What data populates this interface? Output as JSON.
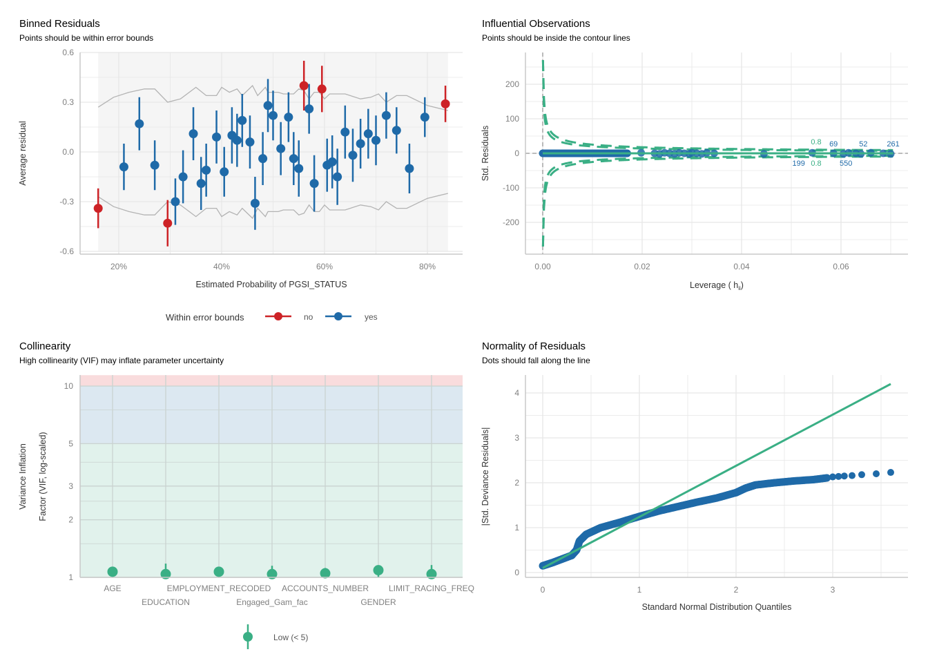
{
  "colors": {
    "blue": "#1f6aa8",
    "red": "#cd2226",
    "green": "#3aaf85",
    "grid": "#e6e6e6",
    "bound": "#b3b3b3"
  },
  "chart_data": [
    {
      "type": "scatter",
      "title": "Binned Residuals",
      "subtitle": "Points should be within error bounds",
      "xlabel": "Estimated Probability of PGSI_STATUS",
      "ylabel": "Average residual",
      "xticks": [
        20,
        40,
        60,
        80
      ],
      "xtick_labels": [
        "20%",
        "40%",
        "60%",
        "80%"
      ],
      "yticks": [
        0.6,
        0.3,
        0.0,
        -0.3,
        -0.6
      ],
      "ytick_labels": [
        "0.6",
        "0.3",
        "0.0",
        "-0.3",
        "-0.6"
      ],
      "xlim": [
        13,
        90
      ],
      "ylim": [
        -0.62,
        0.62
      ],
      "legend": {
        "title": "Within error bounds",
        "entries": [
          "no",
          "yes"
        ],
        "position": "bottom"
      },
      "shaded_x_range": [
        16,
        84
      ],
      "points": [
        [
          16,
          -0.34,
          0.12,
          "no"
        ],
        [
          21,
          -0.09,
          0.14,
          "yes"
        ],
        [
          24,
          0.17,
          0.16,
          "yes"
        ],
        [
          27,
          -0.08,
          0.15,
          "yes"
        ],
        [
          29.5,
          -0.43,
          0.14,
          "no"
        ],
        [
          31,
          -0.3,
          0.14,
          "yes"
        ],
        [
          32.5,
          -0.15,
          0.16,
          "yes"
        ],
        [
          34.5,
          0.11,
          0.16,
          "yes"
        ],
        [
          36,
          -0.19,
          0.16,
          "yes"
        ],
        [
          37,
          -0.11,
          0.16,
          "yes"
        ],
        [
          39,
          0.09,
          0.16,
          "yes"
        ],
        [
          40.5,
          -0.12,
          0.15,
          "yes"
        ],
        [
          42,
          0.1,
          0.17,
          "yes"
        ],
        [
          43,
          0.07,
          0.16,
          "yes"
        ],
        [
          44,
          0.19,
          0.16,
          "yes"
        ],
        [
          45.5,
          0.06,
          0.16,
          "yes"
        ],
        [
          46.5,
          -0.31,
          0.16,
          "yes"
        ],
        [
          48,
          -0.04,
          0.16,
          "yes"
        ],
        [
          49,
          0.28,
          0.16,
          "yes"
        ],
        [
          50,
          0.22,
          0.15,
          "yes"
        ],
        [
          51.5,
          0.02,
          0.16,
          "yes"
        ],
        [
          53,
          0.21,
          0.15,
          "yes"
        ],
        [
          54,
          -0.04,
          0.16,
          "yes"
        ],
        [
          55,
          -0.1,
          0.17,
          "yes"
        ],
        [
          56,
          0.4,
          0.15,
          "no"
        ],
        [
          57,
          0.26,
          0.15,
          "yes"
        ],
        [
          58,
          -0.19,
          0.17,
          "yes"
        ],
        [
          59.5,
          0.38,
          0.14,
          "no"
        ],
        [
          60.5,
          -0.08,
          0.16,
          "yes"
        ],
        [
          61.5,
          -0.06,
          0.16,
          "yes"
        ],
        [
          62.5,
          -0.15,
          0.17,
          "yes"
        ],
        [
          64,
          0.12,
          0.16,
          "yes"
        ],
        [
          65.5,
          -0.02,
          0.16,
          "yes"
        ],
        [
          67,
          0.05,
          0.15,
          "yes"
        ],
        [
          68.5,
          0.11,
          0.15,
          "yes"
        ],
        [
          70,
          0.07,
          0.15,
          "yes"
        ],
        [
          72,
          0.22,
          0.14,
          "yes"
        ],
        [
          74,
          0.13,
          0.14,
          "yes"
        ],
        [
          76.5,
          -0.1,
          0.15,
          "yes"
        ],
        [
          79.5,
          0.21,
          0.12,
          "yes"
        ],
        [
          83.5,
          0.29,
          0.11,
          "no"
        ]
      ],
      "bounds_upper": [
        [
          16,
          0.27
        ],
        [
          19,
          0.33
        ],
        [
          22,
          0.36
        ],
        [
          25,
          0.38
        ],
        [
          27,
          0.38
        ],
        [
          29.5,
          0.3
        ],
        [
          32,
          0.32
        ],
        [
          35,
          0.39
        ],
        [
          37,
          0.34
        ],
        [
          39,
          0.34
        ],
        [
          40,
          0.39
        ],
        [
          41.5,
          0.36
        ],
        [
          43,
          0.38
        ],
        [
          44,
          0.34
        ],
        [
          46,
          0.4
        ],
        [
          47,
          0.34
        ],
        [
          48.5,
          0.39
        ],
        [
          49,
          0.36
        ],
        [
          51,
          0.36
        ],
        [
          52,
          0.35
        ],
        [
          54,
          0.35
        ],
        [
          55,
          0.38
        ],
        [
          56,
          0.37
        ],
        [
          57,
          0.32
        ],
        [
          58,
          0.36
        ],
        [
          59,
          0.36
        ],
        [
          60,
          0.32
        ],
        [
          61,
          0.35
        ],
        [
          64,
          0.35
        ],
        [
          67,
          0.32
        ],
        [
          69,
          0.33
        ],
        [
          70.5,
          0.35
        ],
        [
          72,
          0.3
        ],
        [
          74,
          0.34
        ],
        [
          76,
          0.34
        ],
        [
          80,
          0.28
        ],
        [
          84,
          0.25
        ]
      ]
    },
    {
      "type": "scatter",
      "title": "Influential Observations",
      "subtitle": "Points should be inside the contour lines",
      "xlabel": "Leverage ( h",
      "xlabel_sub": "ii",
      "xlabel_end": ")",
      "ylabel": "Std. Residuals",
      "xticks": [
        0,
        0.02,
        0.04,
        0.06
      ],
      "xtick_labels": [
        "0.00",
        "0.02",
        "0.04",
        "0.06"
      ],
      "yticks": [
        200,
        100,
        0,
        -100,
        -200
      ],
      "ytick_labels": [
        "200",
        "100",
        "0",
        "-100",
        "-200"
      ],
      "xlim": [
        -0.0035,
        0.074
      ],
      "ylim": [
        -290,
        290
      ],
      "cook_levels": [
        0.5,
        0.8
      ],
      "n_params": 8,
      "contour_labels": [
        "0.8",
        "0.8"
      ],
      "dense_leverage_range": [
        0.0,
        0.017
      ],
      "points_leverage": [
        0.0198,
        0.0225,
        0.0235,
        0.0245,
        0.0255,
        0.0265,
        0.0275,
        0.0285,
        0.0295,
        0.03,
        0.031,
        0.032,
        0.033,
        0.0345,
        0.0445,
        0.0542,
        0.0585,
        0.0605,
        0.0615,
        0.063,
        0.064,
        0.066,
        0.0685,
        0.07
      ],
      "labeled_points": [
        {
          "label": "199",
          "leverage": 0.0536,
          "residual": -0.5,
          "pos": "below"
        },
        {
          "label": "69",
          "leverage": 0.0585,
          "residual": 0.5,
          "pos": "above"
        },
        {
          "label": "550",
          "leverage": 0.061,
          "residual": -0.5,
          "pos": "below"
        },
        {
          "label": "52",
          "leverage": 0.0645,
          "residual": 0.5,
          "pos": "above"
        },
        {
          "label": "261",
          "leverage": 0.0705,
          "residual": 0.5,
          "pos": "above"
        }
      ]
    },
    {
      "type": "scatter",
      "title": "Collinearity",
      "subtitle": "High collinearity (VIF) may inflate parameter uncertainty",
      "ylabel_line1": "Variance Inflation",
      "ylabel_line2": "Factor (VIF, log-scaled)",
      "yscale": "log",
      "yticks": [
        1,
        2,
        3,
        5,
        10
      ],
      "ytick_labels": [
        "1",
        "2",
        "3",
        "5",
        "10"
      ],
      "ylim": [
        1,
        11.4
      ],
      "bands": [
        {
          "from": 1,
          "to": 5,
          "color": "#e1f2ec"
        },
        {
          "from": 5,
          "to": 10,
          "color": "#dce8f1"
        },
        {
          "from": 10,
          "to": 11.4,
          "color": "#f9dcdd"
        }
      ],
      "categories": [
        "AGE",
        "EDUCATION",
        "EMPLOYMENT_RECODED",
        "Engaged_Gam_fac",
        "ACCOUNTS_NUMBER",
        "GENDER",
        "LIMIT_RACING_FREQ"
      ],
      "values": [
        1.07,
        1.04,
        1.07,
        1.04,
        1.05,
        1.09,
        1.04
      ],
      "ci_high": [
        1.07,
        1.18,
        1.08,
        1.15,
        1.12,
        1.09,
        1.16
      ],
      "legend": {
        "entries": [
          "Low (< 5)"
        ],
        "position": "bottom"
      }
    },
    {
      "type": "scatter",
      "title": "Normality of Residuals",
      "subtitle": "Dots should fall along the line",
      "xlabel": "Standard Normal Distribution Quantiles",
      "ylabel": "|Std. Deviance Residuals|",
      "xticks": [
        0,
        1,
        2,
        3
      ],
      "xtick_labels": [
        "0",
        "1",
        "2",
        "3"
      ],
      "yticks": [
        4,
        3,
        2,
        1,
        0
      ],
      "ytick_labels": [
        "4",
        "3",
        "2",
        "1",
        "0"
      ],
      "xlim": [
        -0.18,
        3.8
      ],
      "ylim": [
        -0.12,
        4.4
      ],
      "reference_line": [
        [
          0,
          0.1
        ],
        [
          3.6,
          4.2
        ]
      ],
      "curve": [
        [
          0,
          0.15
        ],
        [
          0.1,
          0.22
        ],
        [
          0.2,
          0.3
        ],
        [
          0.3,
          0.38
        ],
        [
          0.35,
          0.5
        ],
        [
          0.38,
          0.7
        ],
        [
          0.45,
          0.85
        ],
        [
          0.6,
          1.0
        ],
        [
          0.8,
          1.12
        ],
        [
          1,
          1.25
        ],
        [
          1.2,
          1.37
        ],
        [
          1.4,
          1.47
        ],
        [
          1.6,
          1.57
        ],
        [
          1.8,
          1.66
        ],
        [
          2.0,
          1.78
        ],
        [
          2.1,
          1.88
        ],
        [
          2.2,
          1.95
        ],
        [
          2.4,
          2.0
        ],
        [
          2.6,
          2.04
        ],
        [
          2.8,
          2.07
        ],
        [
          2.95,
          2.11
        ]
      ],
      "tail_points": [
        [
          3.0,
          2.13
        ],
        [
          3.06,
          2.14
        ],
        [
          3.12,
          2.15
        ],
        [
          3.2,
          2.16
        ],
        [
          3.3,
          2.18
        ],
        [
          3.45,
          2.2
        ],
        [
          3.6,
          2.23
        ]
      ]
    }
  ]
}
